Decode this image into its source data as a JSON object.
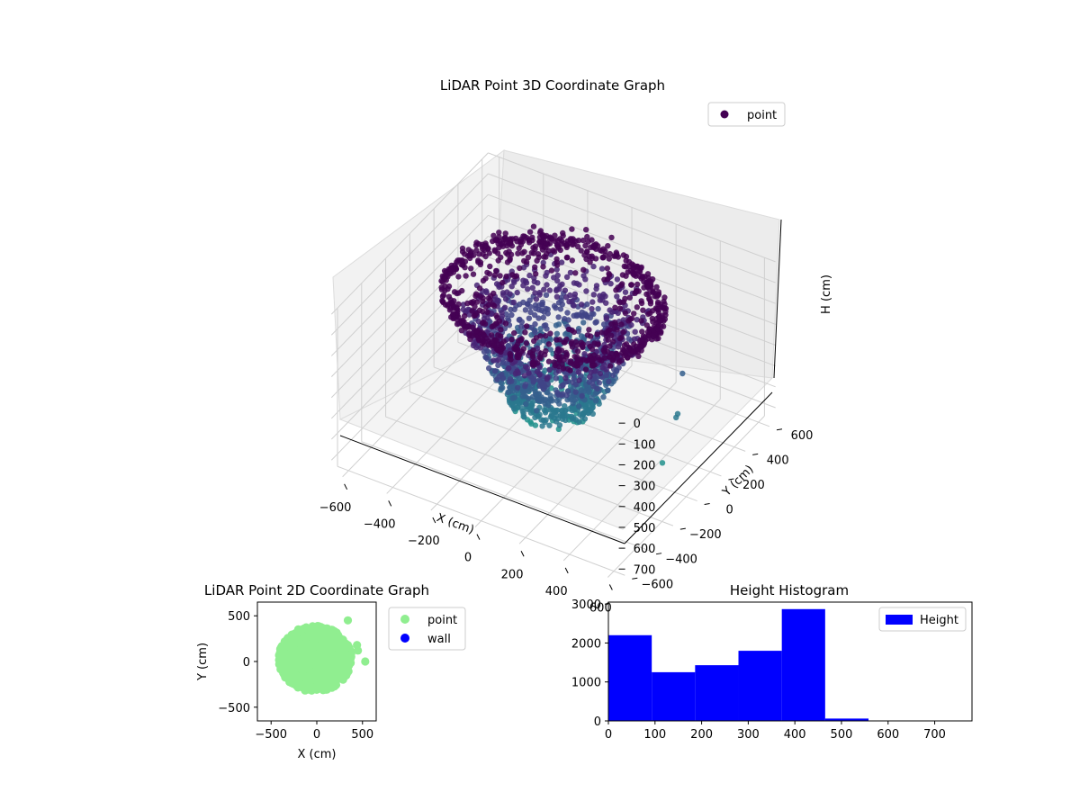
{
  "chart_data": [
    {
      "type": "scatter",
      "subtype": "3d",
      "title": "LiDAR Point 3D Coordinate Graph",
      "xlabel": "X (cm)",
      "ylabel": "Y (cm)",
      "zlabel": "H (cm)",
      "xlim": [
        -650,
        650
      ],
      "ylim": [
        -650,
        650
      ],
      "zlim": [
        0,
        760
      ],
      "z_inverted": true,
      "xticks": [
        "−600",
        "−400",
        "−200",
        "0",
        "200",
        "400",
        "600"
      ],
      "yticks": [
        "−600",
        "−400",
        "−200",
        "0",
        "200",
        "400",
        "600"
      ],
      "zticks": [
        "0",
        "100",
        "200",
        "300",
        "400",
        "500",
        "600",
        "700"
      ],
      "colormap": "viridis",
      "grid": true,
      "legend": {
        "placement": "top-right",
        "entries": [
          {
            "name": "point",
            "color": "#440154"
          }
        ]
      },
      "description_points": {
        "outliers": [
          {
            "x": 420,
            "y": 300,
            "h": 420
          },
          {
            "x": 480,
            "y": 150,
            "h": 500
          },
          {
            "x": 500,
            "y": 100,
            "h": 480
          },
          {
            "x": 520,
            "y": -50,
            "h": 600
          }
        ]
      }
    },
    {
      "type": "scatter",
      "title": "LiDAR Point 2D Coordinate Graph",
      "xlabel": "X (cm)",
      "ylabel": "Y (cm)",
      "xlim": [
        -650,
        650
      ],
      "ylim": [
        -650,
        650
      ],
      "xticks": [
        "−500",
        "0",
        "500"
      ],
      "yticks": [
        "−500",
        "0",
        "500"
      ],
      "legend": {
        "placement": "outside-right",
        "entries": [
          {
            "name": "point",
            "color": "#90ee90"
          },
          {
            "name": "wall",
            "color": "#0000ff"
          }
        ]
      },
      "outliers": [
        {
          "x": 340,
          "y": 450
        },
        {
          "x": 440,
          "y": 180
        },
        {
          "x": 450,
          "y": 120
        },
        {
          "x": 530,
          "y": 0
        }
      ]
    },
    {
      "type": "bar",
      "subtype": "histogram",
      "title": "Height Histogram",
      "xlim": [
        0,
        780
      ],
      "ylim": [
        0,
        3050
      ],
      "xticks": [
        "0",
        "100",
        "200",
        "300",
        "400",
        "500",
        "600",
        "700"
      ],
      "yticks": [
        "0",
        "1000",
        "2000",
        "3000"
      ],
      "bin_edges": [
        0,
        93,
        186,
        279,
        372,
        465,
        558,
        651,
        744
      ],
      "values": [
        2200,
        1250,
        1430,
        1800,
        2870,
        60,
        0,
        0
      ],
      "color": "#0000ff",
      "legend": {
        "placement": "top-right",
        "entries": [
          {
            "name": "Height",
            "color": "#0000ff"
          }
        ]
      }
    }
  ]
}
